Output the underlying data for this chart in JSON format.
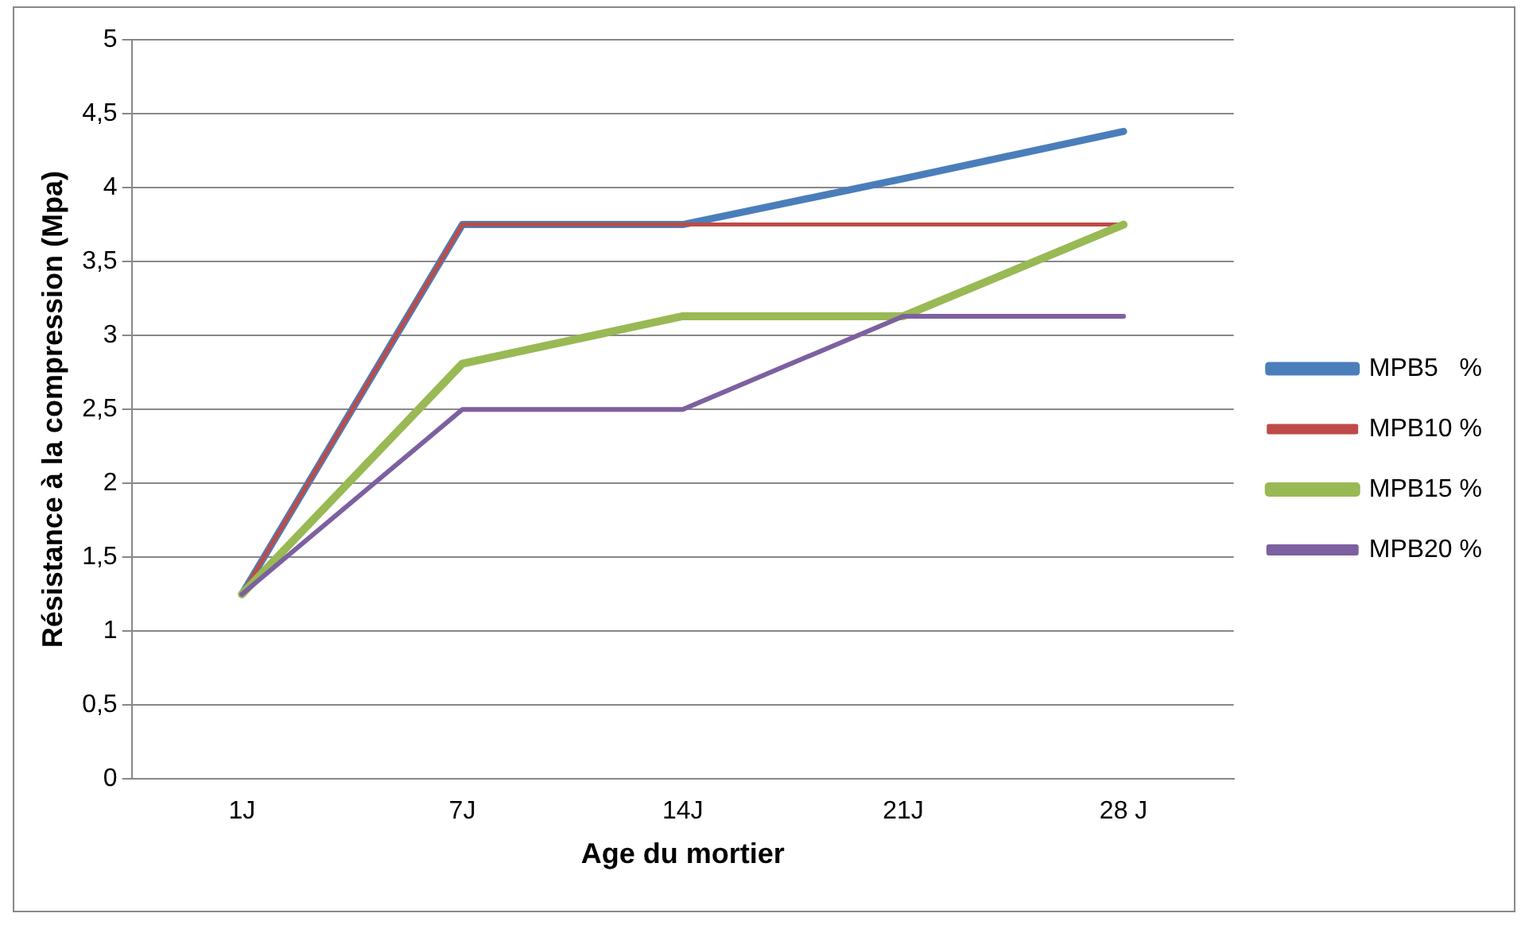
{
  "chart_data": {
    "type": "line",
    "xlabel": "Age du mortier",
    "ylabel": "Résistance à la compression (Mpa)",
    "categories": [
      "1J",
      "7J",
      "14J",
      "21J",
      "28 J"
    ],
    "series": [
      {
        "name": "MPB5   %",
        "color": "#4a7ebb",
        "values": [
          1.25,
          3.75,
          3.75,
          4.06,
          4.38
        ]
      },
      {
        "name": "MPB10 %",
        "color": "#be4b48",
        "values": [
          1.25,
          3.75,
          3.75,
          3.75,
          3.75
        ]
      },
      {
        "name": "MPB15 %",
        "color": "#98b954",
        "values": [
          1.25,
          2.81,
          3.13,
          3.13,
          3.75
        ]
      },
      {
        "name": "MPB20 %",
        "color": "#7d60a0",
        "values": [
          1.25,
          2.5,
          2.5,
          3.13,
          3.13
        ]
      }
    ],
    "ylim": [
      0,
      5
    ],
    "yticks": [
      {
        "value": 0,
        "label": "0"
      },
      {
        "value": 0.5,
        "label": "0,5"
      },
      {
        "value": 1,
        "label": "1"
      },
      {
        "value": 1.5,
        "label": "1,5"
      },
      {
        "value": 2,
        "label": "2"
      },
      {
        "value": 2.5,
        "label": "2,5"
      },
      {
        "value": 3,
        "label": "3"
      },
      {
        "value": 3.5,
        "label": "3,5"
      },
      {
        "value": 4,
        "label": "4"
      },
      {
        "value": 4.5,
        "label": "4,5"
      },
      {
        "value": 5,
        "label": "5"
      }
    ],
    "grid": "y",
    "legend": "right",
    "marker": "none",
    "line_style": "solid"
  }
}
